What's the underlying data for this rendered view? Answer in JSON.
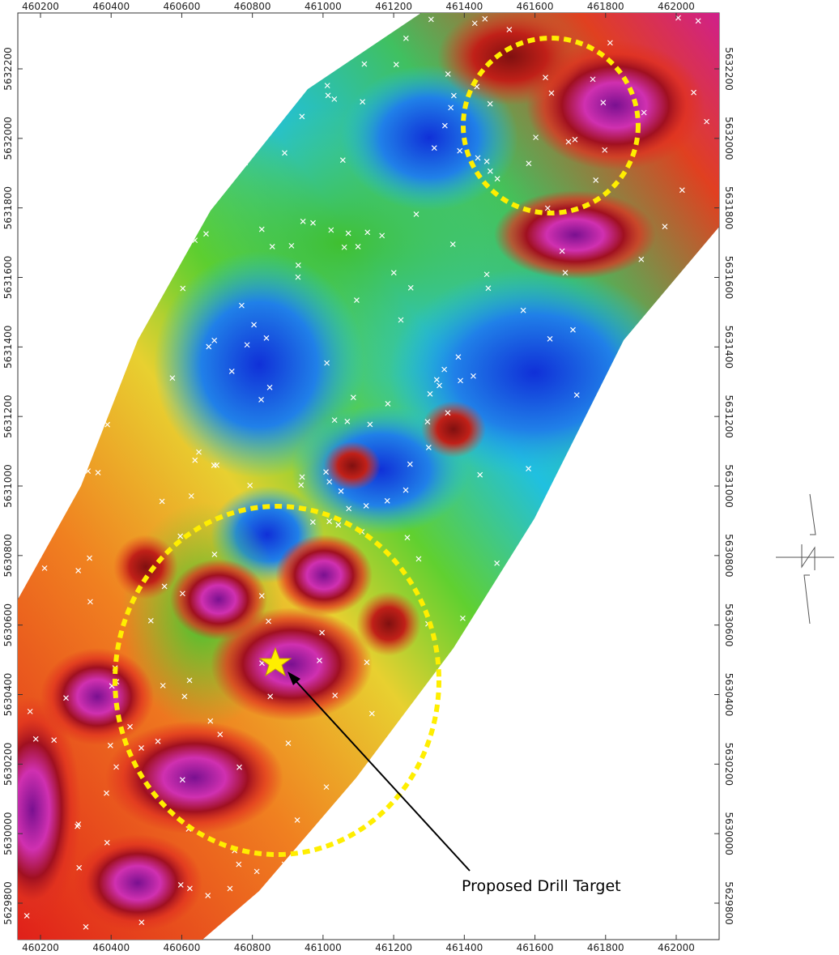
{
  "map": {
    "x_ticks": [
      460200,
      460400,
      460600,
      460800,
      461000,
      461200,
      461400,
      461600,
      461800,
      462000
    ],
    "y_ticks": [
      5629800,
      5630000,
      5630200,
      5630400,
      5630600,
      5630800,
      5631000,
      5631200,
      5631400,
      5631600,
      5631800,
      5632000,
      5632200
    ],
    "annotation": "Proposed Drill Target"
  }
}
